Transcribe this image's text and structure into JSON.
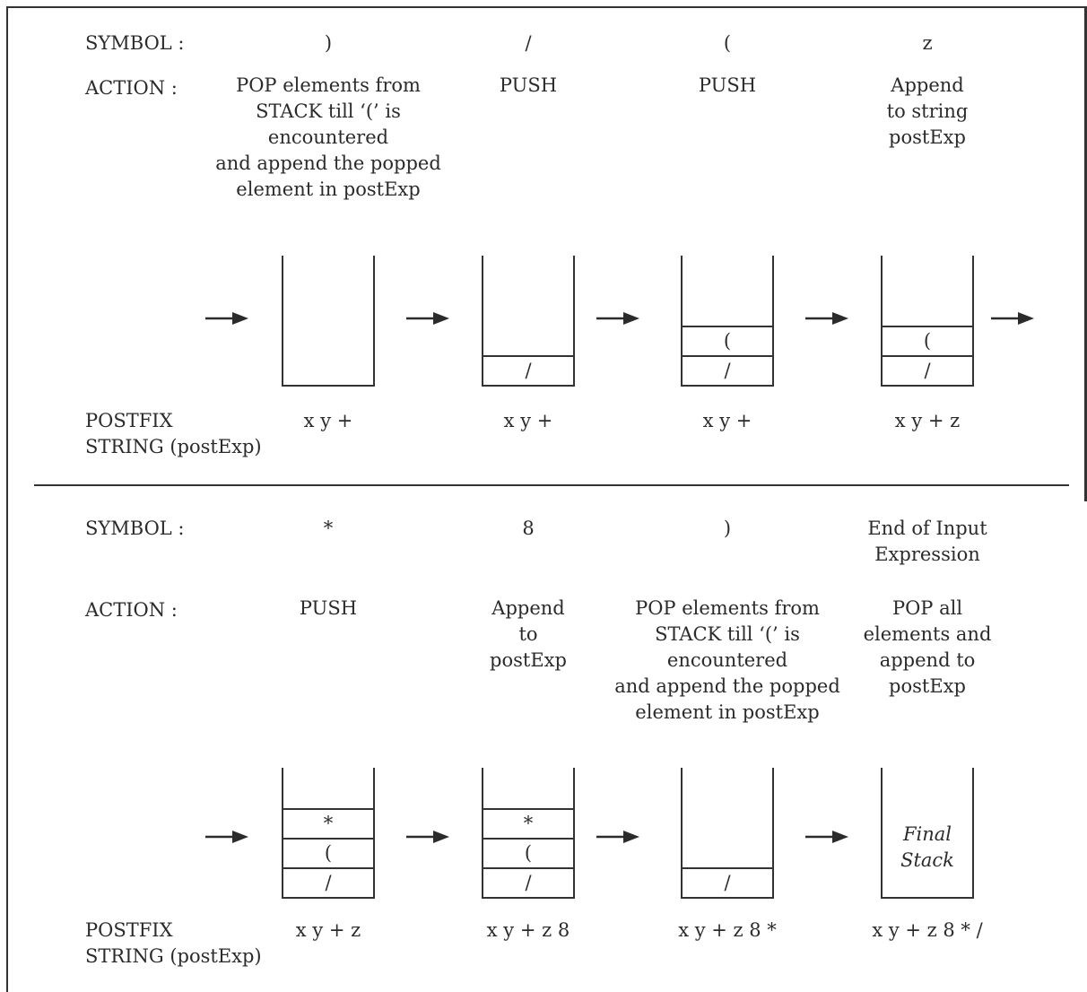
{
  "labels": {
    "symbol": "SYMBOL :",
    "action": "ACTION  :",
    "postfix_line1": "POSTFIX",
    "postfix_line2": "STRING (postExp)"
  },
  "panels": [
    {
      "steps": [
        {
          "symbol": ")",
          "action": [
            "POP elements from",
            "STACK till ‘(’ is",
            "encountered",
            "and append the popped",
            "element in postExp"
          ],
          "stack": [],
          "postfix": "x y +"
        },
        {
          "symbol": "/",
          "action": [
            "PUSH"
          ],
          "stack": [
            "/"
          ],
          "postfix": "x y +"
        },
        {
          "symbol": "(",
          "action": [
            "PUSH"
          ],
          "stack": [
            "/",
            "("
          ],
          "postfix": "x y +"
        },
        {
          "symbol": "z",
          "action": [
            "Append",
            "to string",
            "postExp"
          ],
          "stack": [
            "/",
            "("
          ],
          "postfix": "x y + z"
        }
      ]
    },
    {
      "steps": [
        {
          "symbol": "*",
          "action": [
            "PUSH"
          ],
          "stack": [
            "/",
            "(",
            "*"
          ],
          "postfix": "x y + z"
        },
        {
          "symbol": "8",
          "action": [
            "Append",
            "to",
            "postExp"
          ],
          "stack": [
            "/",
            "(",
            "*"
          ],
          "postfix": "x y + z 8"
        },
        {
          "symbol": ")",
          "action": [
            "POP elements from",
            "STACK till ‘(’ is",
            "encountered",
            "and append the popped",
            "element in postExp"
          ],
          "stack": [
            "/"
          ],
          "postfix": "x y + z 8 *"
        },
        {
          "symbol": "End of Input\nExpression",
          "action": [
            "POP all",
            "elements and",
            "append to",
            "postExp"
          ],
          "stack": [],
          "stack_label": [
            "Final",
            "Stack"
          ],
          "postfix": "x y + z 8 * /"
        }
      ]
    }
  ]
}
